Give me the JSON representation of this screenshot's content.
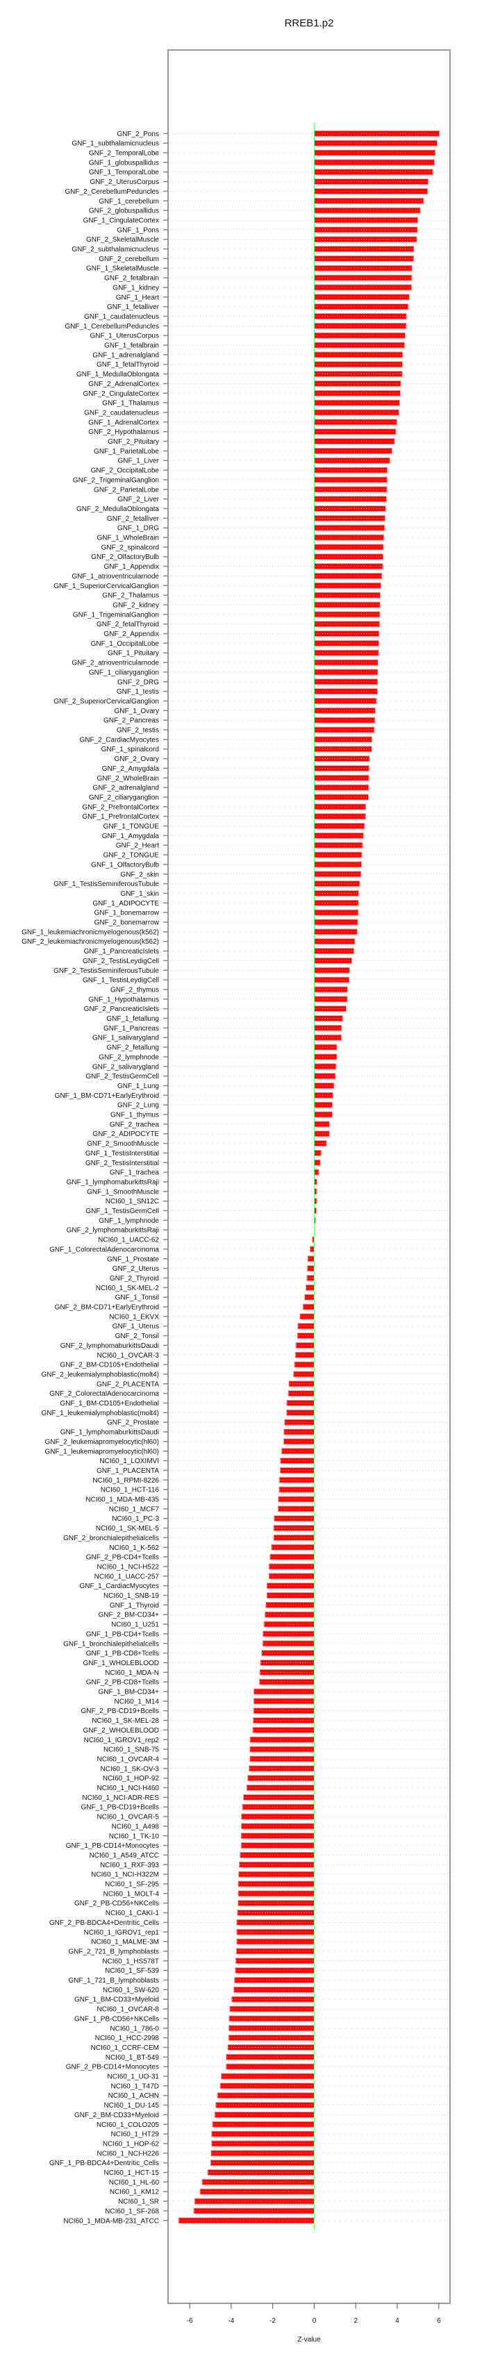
{
  "chart_data": {
    "type": "bar",
    "orientation": "horizontal",
    "title": "RREB1.p2",
    "xlabel": "Z-value",
    "ylabel": "",
    "xlim": [
      -7.04,
      6.54
    ],
    "xticks": [
      -6,
      -4,
      -2,
      0,
      2,
      4,
      6
    ],
    "grid": true,
    "colors": {
      "bar": "#ff0000",
      "bar_edge": "#ff9a9a",
      "zero_line": "#7fff7f",
      "axis": "#999999",
      "grid": "#cccccc"
    },
    "categories": [
      "GNF_2_Pons",
      "GNF_1_subthalamicnucleus",
      "GNF_2_TemporalLobe",
      "GNF_1_globuspallidus",
      "GNF_1_TemporalLobe",
      "GNF_2_UterusCorpus",
      "GNF_2_CerebellumPeduncles",
      "GNF_1_cerebellum",
      "GNF_2_globuspallidus",
      "GNF_1_CingulateCortex",
      "GNF_1_Pons",
      "GNF_2_SkeletalMuscle",
      "GNF_2_subthalamicnucleus",
      "GNF_2_cerebellum",
      "GNF_1_SkeletalMuscle",
      "GNF_2_fetalbrain",
      "GNF_1_kidney",
      "GNF_1_Heart",
      "GNF_1_fetalliver",
      "GNF_1_caudatenucleus",
      "GNF_1_CerebellumPeduncles",
      "GNF_1_UterusCorpus",
      "GNF_1_fetalbrain",
      "GNF_1_adrenalgland",
      "GNF_1_fetalThyroid",
      "GNF_1_MedullaOblongata",
      "GNF_2_AdrenalCortex",
      "GNF_2_CingulateCortex",
      "GNF_1_Thalamus",
      "GNF_2_caudatenucleus",
      "GNF_1_AdrenalCortex",
      "GNF_2_Hypothalamus",
      "GNF_2_Pituitary",
      "GNF_1_ParietalLobe",
      "GNF_1_Liver",
      "GNF_2_OccipitalLobe",
      "GNF_2_TrigeminalGanglion",
      "GNF_2_ParietalLobe",
      "GNF_2_Liver",
      "GNF_2_MedullaOblongata",
      "GNF_2_fetalliver",
      "GNF_1_DRG",
      "GNF_1_WholeBrain",
      "GNF_2_spinalcord",
      "GNF_2_OlfactoryBulb",
      "GNF_1_Appendix",
      "GNF_1_atrioventricularnode",
      "GNF_1_SuperiorCervicalGanglion",
      "GNF_2_Thalamus",
      "GNF_2_kidney",
      "GNF_1_TrigeminalGanglion",
      "GNF_2_fetalThyroid",
      "GNF_2_Appendix",
      "GNF_1_OccipitalLobe",
      "GNF_1_Pituitary",
      "GNF_2_atrioventricularnode",
      "GNF_1_ciliaryganglion",
      "GNF_2_DRG",
      "GNF_1_testis",
      "GNF_2_SuperiorCervicalGanglion",
      "GNF_1_Ovary",
      "GNF_2_Pancreas",
      "GNF_2_testis",
      "GNF_2_CardiacMyocytes",
      "GNF_1_spinalcord",
      "GNF_2_Ovary",
      "GNF_2_Amygdala",
      "GNF_2_WholeBrain",
      "GNF_2_adrenalgland",
      "GNF_2_ciliaryganglion",
      "GNF_2_PrefrontalCortex",
      "GNF_1_PrefrontalCortex",
      "GNF_1_TONGUE",
      "GNF_1_Amygdala",
      "GNF_2_Heart",
      "GNF_2_TONGUE",
      "GNF_1_OlfactoryBulb",
      "GNF_2_skin",
      "GNF_1_TestisSeminiferousTubule",
      "GNF_1_skin",
      "GNF_1_ADIPOCYTE",
      "GNF_1_bonemarrow",
      "GNF_2_bonemarrow",
      "GNF_1_leukemiachronicmyelogenous(k562)",
      "GNF_2_leukemiachronicmyelogenous(k562)",
      "GNF_1_PancreaticIslets",
      "GNF_2_TestisLeydigCell",
      "GNF_2_TestisSeminiferousTubule",
      "GNF_1_TestisLeydigCell",
      "GNF_2_thymus",
      "GNF_1_Hypothalamus",
      "GNF_2_PancreaticIslets",
      "GNF_1_fetallung",
      "GNF_1_Pancreas",
      "GNF_1_salivarygland",
      "GNF_2_fetallung",
      "GNF_2_lymphnode",
      "GNF_2_salivarygland",
      "GNF_2_TestisGermCell",
      "GNF_1_Lung",
      "GNF_1_BM-CD71+EarlyErythroid",
      "GNF_2_Lung",
      "GNF_1_thymus",
      "GNF_2_trachea",
      "GNF_2_ADIPOCYTE",
      "GNF_2_SmoothMuscle",
      "GNF_1_TestisInterstitial",
      "GNF_2_TestisInterstitial",
      "GNF_1_trachea",
      "GNF_1_lymphomaburkittsRaji",
      "GNF_1_SmoothMuscle",
      "NCI60_1_SN12C",
      "GNF_1_TestisGermCell",
      "GNF_1_lymphnode",
      "GNF_2_lymphomaburkittsRaji",
      "NCI60_1_UACC-62",
      "GNF_1_ColorectalAdenocarcinoma",
      "GNF_1_Prostate",
      "GNF_2_Uterus",
      "GNF_2_Thyroid",
      "NCI60_1_SK-MEL-2",
      "GNF_1_Tonsil",
      "GNF_2_BM-CD71+EarlyErythroid",
      "NCI60_1_EKVX",
      "GNF_1_Uterus",
      "GNF_2_Tonsil",
      "GNF_2_lymphomaburkittsDaudi",
      "NCI60_1_OVCAR-3",
      "GNF_2_BM-CD105+Endothelial",
      "GNF_2_leukemialymphoblastic(molt4)",
      "GNF_2_PLACENTA",
      "GNF_2_ColorectalAdenocarcinoma",
      "GNF_1_BM-CD105+Endothelial",
      "GNF_1_leukemialymphoblastic(molt4)",
      "GNF_2_Prostate",
      "GNF_1_lymphomaburkittsDaudi",
      "GNF_2_leukemiapromyelocytic(hl60)",
      "GNF_1_leukemiapromyelocytic(hl60)",
      "NCI60_1_LOXIMVI",
      "GNF_1_PLACENTA",
      "NCI60_1_RPMI-8226",
      "NCI60_1_HCT-116",
      "NCI60_1_MDA-MB-435",
      "NCI60_1_MCF7",
      "NCI60_1_PC-3",
      "NCI60_1_SK-MEL-5",
      "GNF_2_bronchialepithelialcells",
      "NCI60_1_K-562",
      "GNF_2_PB-CD4+Tcells",
      "NCI60_1_NCI-H522",
      "NCI60_1_UACC-257",
      "GNF_1_CardiacMyocytes",
      "NCI60_1_SNB-19",
      "GNF_1_Thyroid",
      "GNF_2_BM-CD34+",
      "NCI60_1_U251",
      "GNF_1_PB-CD4+Tcells",
      "GNF_1_bronchialepithelialcells",
      "GNF_1_PB-CD8+Tcells",
      "GNF_1_WHOLEBLOOD",
      "NCI60_1_MDA-N",
      "GNF_2_PB-CD8+Tcells",
      "GNF_1_BM-CD34+",
      "NCI60_1_M14",
      "GNF_2_PB-CD19+Bcells",
      "NCI60_1_SK-MEL-28",
      "GNF_2_WHOLEBLOOD",
      "NCI60_1_IGROV1_rep2",
      "NCI60_1_SNB-75",
      "NCI60_1_OVCAR-4",
      "NCI60_1_SK-OV-3",
      "NCI60_1_HOP-92",
      "NCI60_1_NCI-H460",
      "NCI60_1_NCI-ADR-RES",
      "GNF_1_PB-CD19+Bcells",
      "NCI60_1_OVCAR-5",
      "NCI60_1_A498",
      "NCI60_1_TK-10",
      "GNF_1_PB-CD14+Monocytes",
      "NCI60_1_A549_ATCC",
      "NCI60_1_RXF-393",
      "NCI60_1_NCI-H322M",
      "NCI60_1_SF-295",
      "NCI60_1_MOLT-4",
      "GNF_2_PB-CD56+NKCells",
      "NCI60_1_CAKI-1",
      "GNF_2_PB-BDCA4+Dentritic_Cells",
      "NCI60_1_IGROV1_rep1",
      "NCI60_1_MALME-3M",
      "GNF_2_721_B_lymphoblasts",
      "NCI60_1_HS578T",
      "NCI60_1_SF-539",
      "GNF_1_721_B_lymphoblasts",
      "NCI60_1_SW-620",
      "GNF_1_BM-CD33+Myeloid",
      "NCI60_1_OVCAR-8",
      "GNF_1_PB-CD56+NKCells",
      "NCI60_1_786-0",
      "NCI60_1_HCC-2998",
      "NCI60_1_CCRF-CEM",
      "NCI60_1_BT-549",
      "GNF_2_PB-CD14+Monocytes",
      "NCI60_1_UO-31",
      "NCI60_1_T47D",
      "NCI60_1_ACHN",
      "NCI60_1_DU-145",
      "GNF_2_BM-CD33+Myeloid",
      "NCI60_1_COLO205",
      "NCI60_1_HT29",
      "NCI60_1_HOP-62",
      "NCI60_1_NCI-H226",
      "GNF_1_PB-BDCA4+Dentritic_Cells",
      "NCI60_1_HCT-15",
      "NCI60_1_HL-60",
      "NCI60_1_KM12",
      "NCI60_1_SR",
      "NCI60_1_SF-268",
      "NCI60_1_MDA-MB-231_ATCC"
    ],
    "values": [
      6.03,
      5.92,
      5.83,
      5.79,
      5.71,
      5.49,
      5.46,
      5.27,
      5.11,
      4.99,
      4.97,
      4.94,
      4.8,
      4.79,
      4.71,
      4.7,
      4.69,
      4.58,
      4.53,
      4.44,
      4.43,
      4.38,
      4.35,
      4.26,
      4.25,
      4.24,
      4.17,
      4.15,
      4.11,
      4.08,
      3.98,
      3.93,
      3.87,
      3.75,
      3.64,
      3.52,
      3.51,
      3.5,
      3.48,
      3.44,
      3.41,
      3.39,
      3.35,
      3.33,
      3.32,
      3.3,
      3.26,
      3.21,
      3.18,
      3.17,
      3.16,
      3.15,
      3.12,
      3.11,
      3.1,
      3.07,
      3.06,
      3.05,
      3.04,
      2.99,
      2.94,
      2.92,
      2.89,
      2.78,
      2.77,
      2.66,
      2.64,
      2.63,
      2.62,
      2.61,
      2.48,
      2.47,
      2.42,
      2.37,
      2.33,
      2.29,
      2.28,
      2.25,
      2.19,
      2.14,
      2.13,
      2.12,
      2.1,
      2.07,
      1.95,
      1.91,
      1.81,
      1.7,
      1.68,
      1.6,
      1.59,
      1.54,
      1.37,
      1.32,
      1.31,
      1.09,
      1.09,
      1.05,
      1.02,
      0.95,
      0.9,
      0.87,
      0.87,
      0.73,
      0.73,
      0.59,
      0.33,
      0.29,
      0.22,
      0.13,
      0.12,
      0.12,
      0.1,
      0.06,
      0.01,
      -0.09,
      -0.2,
      -0.31,
      -0.33,
      -0.35,
      -0.4,
      -0.46,
      -0.54,
      -0.69,
      -0.79,
      -0.81,
      -0.88,
      -0.91,
      -0.95,
      -1.0,
      -1.22,
      -1.25,
      -1.32,
      -1.33,
      -1.43,
      -1.46,
      -1.47,
      -1.57,
      -1.63,
      -1.64,
      -1.68,
      -1.69,
      -1.73,
      -1.74,
      -1.93,
      -1.95,
      -1.95,
      -2.06,
      -2.13,
      -2.18,
      -2.18,
      -2.28,
      -2.28,
      -2.33,
      -2.37,
      -2.42,
      -2.47,
      -2.48,
      -2.53,
      -2.59,
      -2.62,
      -2.64,
      -2.91,
      -2.91,
      -2.92,
      -2.94,
      -2.96,
      -3.09,
      -3.1,
      -3.1,
      -3.14,
      -3.2,
      -3.25,
      -3.41,
      -3.46,
      -3.51,
      -3.51,
      -3.52,
      -3.52,
      -3.57,
      -3.61,
      -3.64,
      -3.66,
      -3.66,
      -3.67,
      -3.7,
      -3.73,
      -3.73,
      -3.73,
      -3.75,
      -3.78,
      -3.8,
      -3.84,
      -3.87,
      -3.97,
      -4.07,
      -4.1,
      -4.11,
      -4.12,
      -4.16,
      -4.24,
      -4.24,
      -4.48,
      -4.53,
      -4.66,
      -4.74,
      -4.79,
      -4.9,
      -4.94,
      -4.94,
      -4.97,
      -4.99,
      -5.13,
      -5.4,
      -5.5,
      -5.76,
      -5.8,
      -6.53
    ]
  }
}
